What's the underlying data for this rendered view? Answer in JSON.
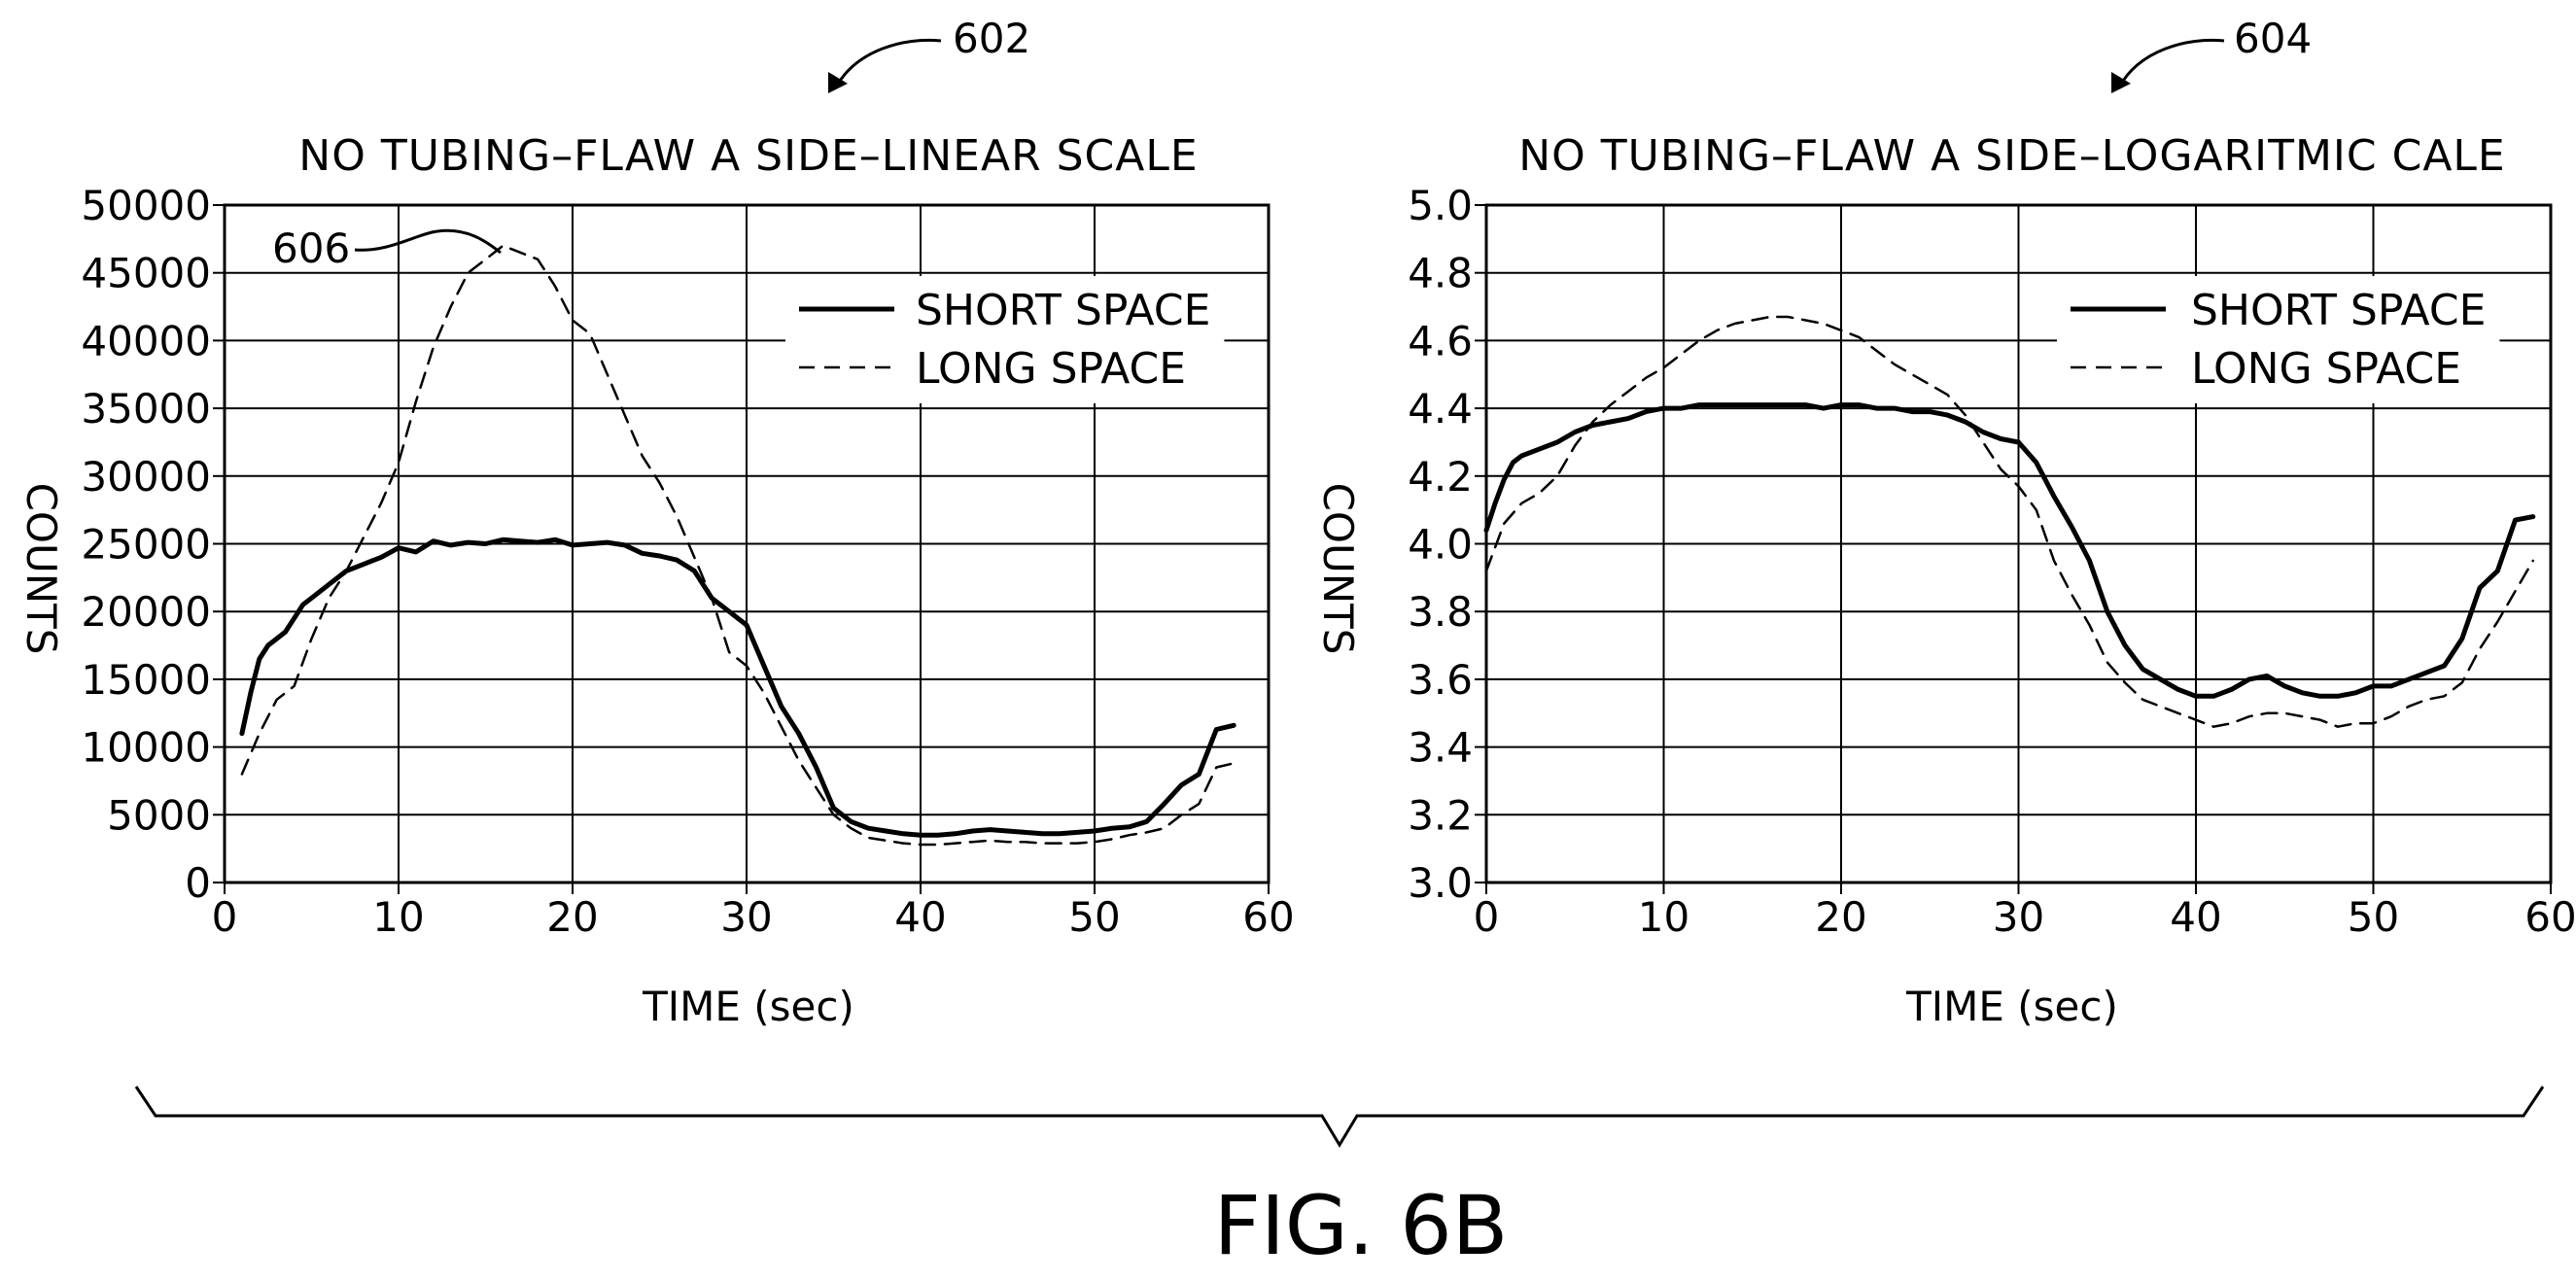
{
  "figure_label": "FIG. 6B",
  "chart_data": [
    {
      "type": "line",
      "ref_number": "602",
      "callout_number": "606",
      "title": "NO TUBING–FLAW  A SIDE–LINEAR SCALE",
      "xlabel": "TIME (sec)",
      "ylabel": "COUNTS",
      "xlim": [
        0,
        60
      ],
      "ylim": [
        0,
        50000
      ],
      "x_ticks": [
        "0",
        "10",
        "20",
        "30",
        "40",
        "50",
        "60"
      ],
      "y_ticks": [
        "0",
        "5000",
        "10000",
        "15000",
        "20000",
        "25000",
        "30000",
        "35000",
        "40000",
        "45000",
        "50000"
      ],
      "grid": true,
      "legend_position": "top-right",
      "series": [
        {
          "name": "SHORT SPACE",
          "style": "solid",
          "x": [
            1,
            1.5,
            2,
            2.5,
            3,
            3.5,
            4,
            4.5,
            5,
            6,
            7,
            8,
            9,
            10,
            11,
            12,
            13,
            14,
            15,
            16,
            17,
            18,
            19,
            20,
            21,
            22,
            23,
            24,
            25,
            26,
            27,
            28,
            29,
            30,
            31,
            32,
            33,
            34,
            35,
            36,
            37,
            38,
            39,
            40,
            41,
            42,
            43,
            44,
            45,
            46,
            47,
            48,
            49,
            50,
            51,
            52,
            53,
            54,
            55,
            56,
            57,
            58
          ],
          "y": [
            11000,
            14000,
            16500,
            17500,
            18000,
            18500,
            19500,
            20500,
            21000,
            22000,
            23000,
            23500,
            24000,
            24700,
            24400,
            25200,
            24900,
            25100,
            25000,
            25300,
            25200,
            25100,
            25300,
            24900,
            25000,
            25100,
            24900,
            24300,
            24100,
            23800,
            23000,
            21000,
            20000,
            19000,
            16000,
            13000,
            11000,
            8500,
            5500,
            4500,
            4000,
            3800,
            3600,
            3500,
            3500,
            3600,
            3800,
            3900,
            3800,
            3700,
            3600,
            3600,
            3700,
            3800,
            4000,
            4100,
            4500,
            5800,
            7200,
            8000,
            11300,
            11600
          ]
        },
        {
          "name": "LONG SPACE",
          "style": "dashed",
          "x": [
            1,
            2,
            3,
            4,
            5,
            6,
            7,
            8,
            9,
            10,
            11,
            12,
            13,
            14,
            15,
            16,
            17,
            18,
            19,
            20,
            21,
            22,
            23,
            24,
            25,
            26,
            27,
            28,
            29,
            30,
            31,
            32,
            33,
            34,
            35,
            36,
            37,
            38,
            39,
            40,
            41,
            42,
            43,
            44,
            45,
            46,
            47,
            48,
            49,
            50,
            51,
            52,
            53,
            54,
            55,
            56,
            57,
            58
          ],
          "y": [
            8000,
            11000,
            13500,
            14500,
            18000,
            21000,
            23000,
            25500,
            28000,
            31000,
            35500,
            39500,
            42500,
            45000,
            46000,
            47000,
            46500,
            46000,
            44000,
            41500,
            40500,
            37500,
            34500,
            31500,
            29500,
            27000,
            24000,
            21000,
            17000,
            16000,
            14000,
            11500,
            9000,
            7000,
            5000,
            4000,
            3300,
            3100,
            2900,
            2800,
            2800,
            2900,
            3000,
            3100,
            3000,
            3000,
            2900,
            2900,
            2900,
            3000,
            3200,
            3500,
            3700,
            4000,
            5000,
            5800,
            8500,
            8800
          ]
        }
      ]
    },
    {
      "type": "line",
      "ref_number": "604",
      "title": "NO TUBING–FLAW  A SIDE–LOGARITMIC CALE",
      "xlabel": "TIME (sec)",
      "ylabel": "COUNTS",
      "xlim": [
        0,
        60
      ],
      "ylim": [
        3.0,
        5.0
      ],
      "x_ticks": [
        "0",
        "10",
        "20",
        "30",
        "40",
        "50",
        "60"
      ],
      "y_ticks": [
        "3.0",
        "3.2",
        "3.4",
        "3.6",
        "3.8",
        "4.0",
        "4.2",
        "4.4",
        "4.6",
        "4.8",
        "5.0"
      ],
      "grid": true,
      "legend_position": "top-right",
      "series": [
        {
          "name": "SHORT SPACE",
          "style": "solid",
          "x": [
            0,
            0.5,
            1,
            1.5,
            2,
            3,
            4,
            5,
            6,
            7,
            8,
            9,
            10,
            11,
            12,
            13,
            14,
            15,
            16,
            17,
            18,
            19,
            20,
            21,
            22,
            23,
            24,
            25,
            26,
            27,
            28,
            29,
            30,
            31,
            32,
            33,
            34,
            35,
            36,
            37,
            38,
            39,
            40,
            41,
            42,
            43,
            44,
            45,
            46,
            47,
            48,
            49,
            50,
            51,
            52,
            53,
            54,
            55,
            56,
            57,
            58,
            59
          ],
          "y": [
            4.04,
            4.12,
            4.19,
            4.24,
            4.26,
            4.28,
            4.3,
            4.33,
            4.35,
            4.36,
            4.37,
            4.39,
            4.4,
            4.4,
            4.41,
            4.41,
            4.41,
            4.41,
            4.41,
            4.41,
            4.41,
            4.4,
            4.41,
            4.41,
            4.4,
            4.4,
            4.39,
            4.39,
            4.38,
            4.36,
            4.33,
            4.31,
            4.3,
            4.24,
            4.14,
            4.05,
            3.95,
            3.8,
            3.7,
            3.63,
            3.6,
            3.57,
            3.55,
            3.55,
            3.57,
            3.6,
            3.61,
            3.58,
            3.56,
            3.55,
            3.55,
            3.56,
            3.58,
            3.58,
            3.6,
            3.62,
            3.64,
            3.72,
            3.87,
            3.92,
            4.07,
            4.08
          ]
        },
        {
          "name": "LONG SPACE",
          "style": "dashed",
          "x": [
            0,
            1,
            2,
            3,
            4,
            5,
            6,
            7,
            8,
            9,
            10,
            11,
            12,
            13,
            14,
            15,
            16,
            17,
            18,
            19,
            20,
            21,
            22,
            23,
            24,
            25,
            26,
            27,
            28,
            29,
            30,
            31,
            32,
            33,
            34,
            35,
            36,
            37,
            38,
            39,
            40,
            41,
            42,
            43,
            44,
            45,
            46,
            47,
            48,
            49,
            50,
            51,
            52,
            53,
            54,
            55,
            56,
            57,
            58,
            59
          ],
          "y": [
            3.92,
            4.06,
            4.12,
            4.15,
            4.2,
            4.29,
            4.36,
            4.41,
            4.45,
            4.49,
            4.52,
            4.56,
            4.6,
            4.63,
            4.65,
            4.66,
            4.67,
            4.67,
            4.66,
            4.65,
            4.63,
            4.61,
            4.57,
            4.53,
            4.5,
            4.47,
            4.44,
            4.38,
            4.3,
            4.22,
            4.17,
            4.1,
            3.95,
            3.85,
            3.76,
            3.65,
            3.59,
            3.54,
            3.52,
            3.5,
            3.48,
            3.46,
            3.47,
            3.49,
            3.5,
            3.5,
            3.49,
            3.48,
            3.46,
            3.47,
            3.47,
            3.49,
            3.52,
            3.54,
            3.55,
            3.59,
            3.69,
            3.77,
            3.86,
            3.95
          ]
        }
      ]
    }
  ]
}
